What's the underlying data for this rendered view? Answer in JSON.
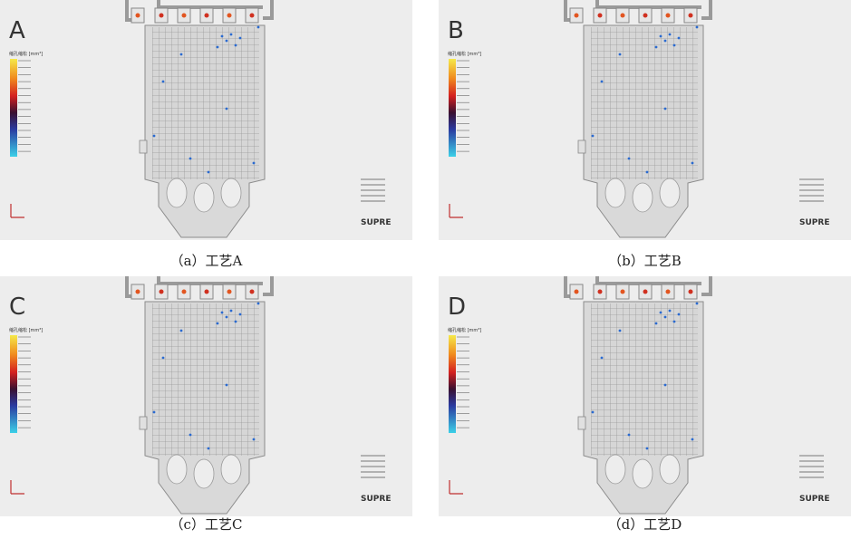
{
  "panels": [
    {
      "letter": "A",
      "caption": "（a）工艺A",
      "legend_title": "缩孔缩松 [mm³]",
      "logo": "SUPRE"
    },
    {
      "letter": "B",
      "caption": "（b）工艺B",
      "legend_title": "缩孔缩松 [mm³]",
      "logo": "SUPRE"
    },
    {
      "letter": "C",
      "caption": "（c）工艺C",
      "legend_title": "缩孔缩松 [mm³]",
      "logo": "SUPRE"
    },
    {
      "letter": "D",
      "caption": "（d）工艺D",
      "legend_title": "缩孔缩松 [mm³]",
      "logo": "SUPRE"
    }
  ]
}
